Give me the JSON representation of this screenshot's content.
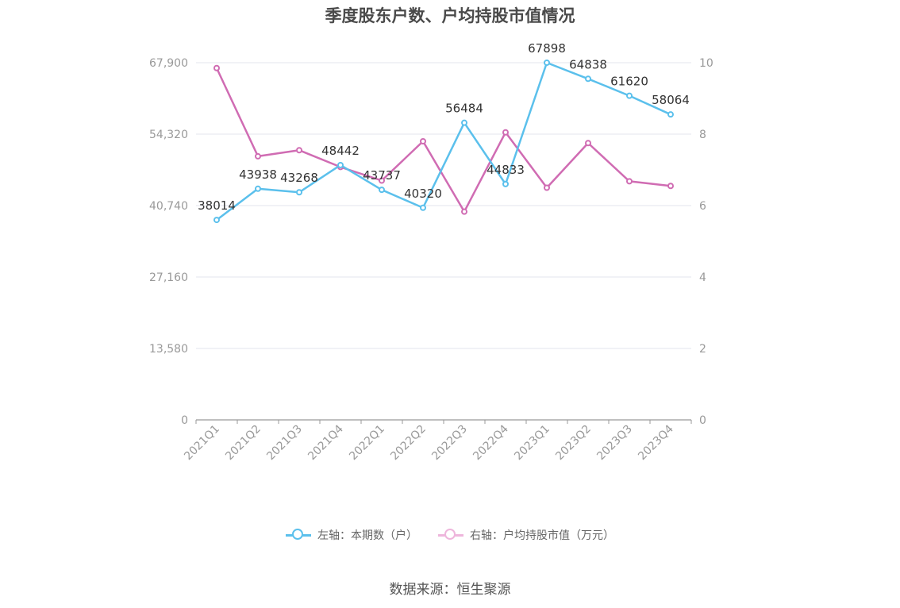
{
  "chart_data": {
    "type": "line",
    "title": "季度股东户数、户均持股市值情况",
    "categories": [
      "2021Q1",
      "2021Q2",
      "2021Q3",
      "2021Q4",
      "2022Q1",
      "2022Q2",
      "2022Q3",
      "2022Q4",
      "2023Q1",
      "2023Q2",
      "2023Q3",
      "2023Q4"
    ],
    "series": [
      {
        "name": "左轴：本期数（户）",
        "axis": "left",
        "color": "#5bc0ec",
        "values": [
          38014,
          43938,
          43268,
          48442,
          43737,
          40320,
          56484,
          44833,
          67898,
          64838,
          61620,
          58064
        ],
        "labels": [
          "38014",
          "43938",
          "43268",
          "48442",
          "43737",
          "40320",
          "56484",
          "44833",
          "67898",
          "64838",
          "61620",
          "58064"
        ]
      },
      {
        "name": "右轴：户均持股市值（万元）",
        "axis": "right",
        "color": "#d06cb3",
        "values": [
          9.85,
          7.38,
          7.55,
          7.08,
          6.7,
          7.8,
          5.83,
          8.05,
          6.5,
          7.75,
          6.68,
          6.55
        ]
      }
    ],
    "y_left": {
      "range": [
        0,
        67900
      ],
      "ticks": [
        "0",
        "13,580",
        "27,160",
        "40,740",
        "54,320",
        "67,900"
      ]
    },
    "y_right": {
      "range": [
        0,
        10
      ],
      "ticks": [
        "0",
        "2",
        "4",
        "6",
        "8",
        "10"
      ]
    },
    "grid": true,
    "legend": "bottom-center"
  },
  "source": "数据来源：恒生聚源"
}
